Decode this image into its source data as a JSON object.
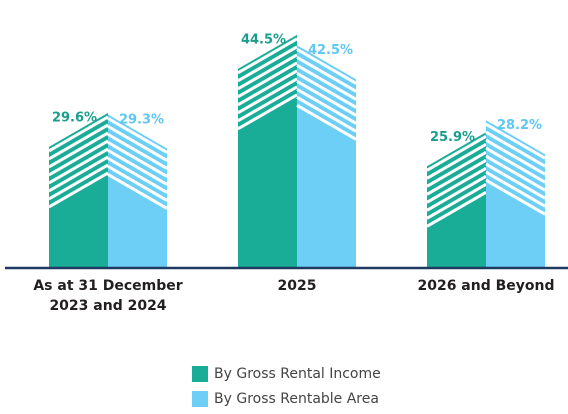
{
  "chart_data": {
    "type": "building-bar",
    "categories": [
      "As at 31 December 2023 and 2024",
      "2025",
      "2026 and Beyond"
    ],
    "series": [
      {
        "name": "By Gross Rental Income",
        "color": "#19ad98",
        "values": [
          29.6,
          44.5,
          25.9
        ],
        "value_labels": [
          "29.6%",
          "44.5%",
          "25.9%"
        ]
      },
      {
        "name": "By Gross Rentable Area",
        "color": "#6dcff6",
        "values": [
          29.3,
          42.5,
          28.2
        ],
        "value_labels": [
          "29.3%",
          "42.5%",
          "28.2%"
        ]
      }
    ]
  }
}
